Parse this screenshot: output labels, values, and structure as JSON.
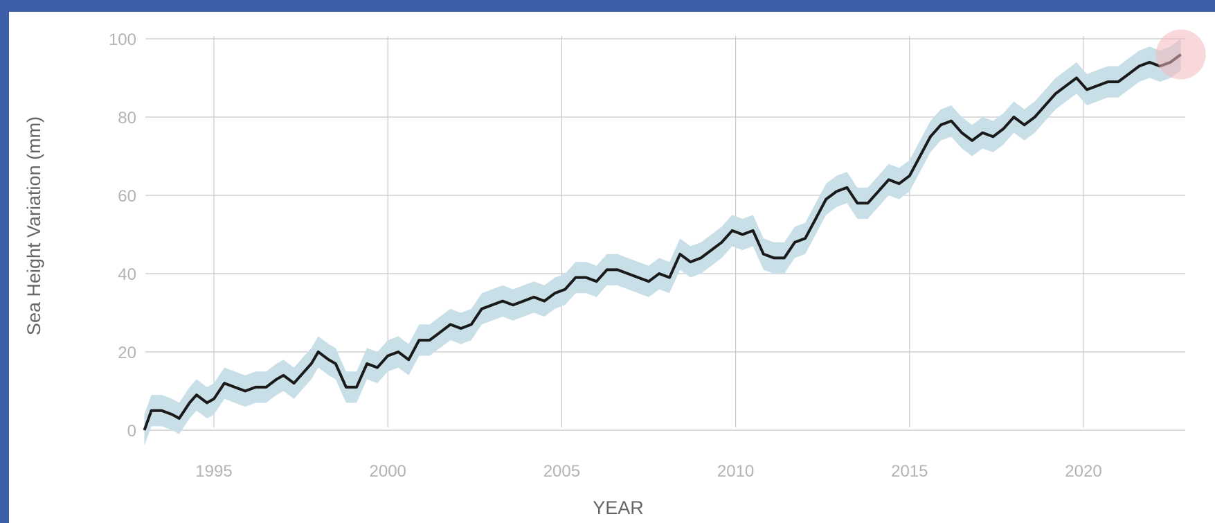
{
  "chart_data": {
    "type": "line",
    "xlabel": "YEAR",
    "ylabel": "Sea Height Variation (mm)",
    "xlim": [
      1993.0,
      2022.9
    ],
    "ylim": [
      -2,
      101
    ],
    "x_ticks": [
      1995,
      2000,
      2005,
      2010,
      2015,
      2020
    ],
    "y_ticks": [
      0,
      20,
      40,
      60,
      80,
      100
    ],
    "grid": true,
    "uncertainty_band_mm": 4,
    "highlight_last_point": true,
    "colors": {
      "line": "#1a1a1a",
      "band": "#c9dfe8",
      "grid": "#c8c8c8",
      "highlight": "#f2b8bb",
      "background": "#3a5fa8"
    },
    "series": [
      {
        "x": [
          1993.0,
          1993.2,
          1993.5,
          1993.8,
          1994.0,
          1994.3,
          1994.5,
          1994.8,
          1995.0,
          1995.3,
          1995.6,
          1995.9,
          1996.2,
          1996.5,
          1996.8,
          1997.0,
          1997.3,
          1997.6,
          1997.8,
          1998.0,
          1998.3,
          1998.5,
          1998.8,
          1999.1,
          1999.4,
          1999.7,
          2000.0,
          2000.3,
          2000.6,
          2000.9,
          2001.2,
          2001.5,
          2001.8,
          2002.1,
          2002.4,
          2002.7,
          2003.0,
          2003.3,
          2003.6,
          2003.9,
          2004.2,
          2004.5,
          2004.8,
          2005.1,
          2005.4,
          2005.7,
          2006.0,
          2006.3,
          2006.6,
          2006.9,
          2007.2,
          2007.5,
          2007.8,
          2008.1,
          2008.4,
          2008.7,
          2009.0,
          2009.3,
          2009.6,
          2009.9,
          2010.2,
          2010.5,
          2010.8,
          2011.1,
          2011.4,
          2011.7,
          2012.0,
          2012.3,
          2012.6,
          2012.9,
          2013.2,
          2013.5,
          2013.8,
          2014.1,
          2014.4,
          2014.7,
          2015.0,
          2015.3,
          2015.6,
          2015.9,
          2016.2,
          2016.5,
          2016.8,
          2017.1,
          2017.4,
          2017.7,
          2018.0,
          2018.3,
          2018.6,
          2018.9,
          2019.2,
          2019.5,
          2019.8,
          2020.1,
          2020.4,
          2020.7,
          2021.0,
          2021.3,
          2021.6,
          2021.9,
          2022.2,
          2022.5,
          2022.8
        ],
        "values": [
          0,
          5,
          5,
          4,
          3,
          7,
          9,
          7,
          8,
          12,
          11,
          10,
          11,
          11,
          13,
          14,
          12,
          15,
          17,
          20,
          18,
          17,
          11,
          11,
          17,
          16,
          19,
          20,
          18,
          23,
          23,
          25,
          27,
          26,
          27,
          31,
          32,
          33,
          32,
          33,
          34,
          33,
          35,
          36,
          39,
          39,
          38,
          41,
          41,
          40,
          39,
          38,
          40,
          39,
          45,
          43,
          44,
          46,
          48,
          51,
          50,
          51,
          45,
          44,
          44,
          48,
          49,
          54,
          59,
          61,
          62,
          58,
          58,
          61,
          64,
          63,
          65,
          70,
          75,
          78,
          79,
          76,
          74,
          76,
          75,
          77,
          80,
          78,
          80,
          83,
          86,
          88,
          90,
          87,
          88,
          89,
          89,
          91,
          93,
          94,
          93,
          94,
          96
        ]
      }
    ]
  }
}
